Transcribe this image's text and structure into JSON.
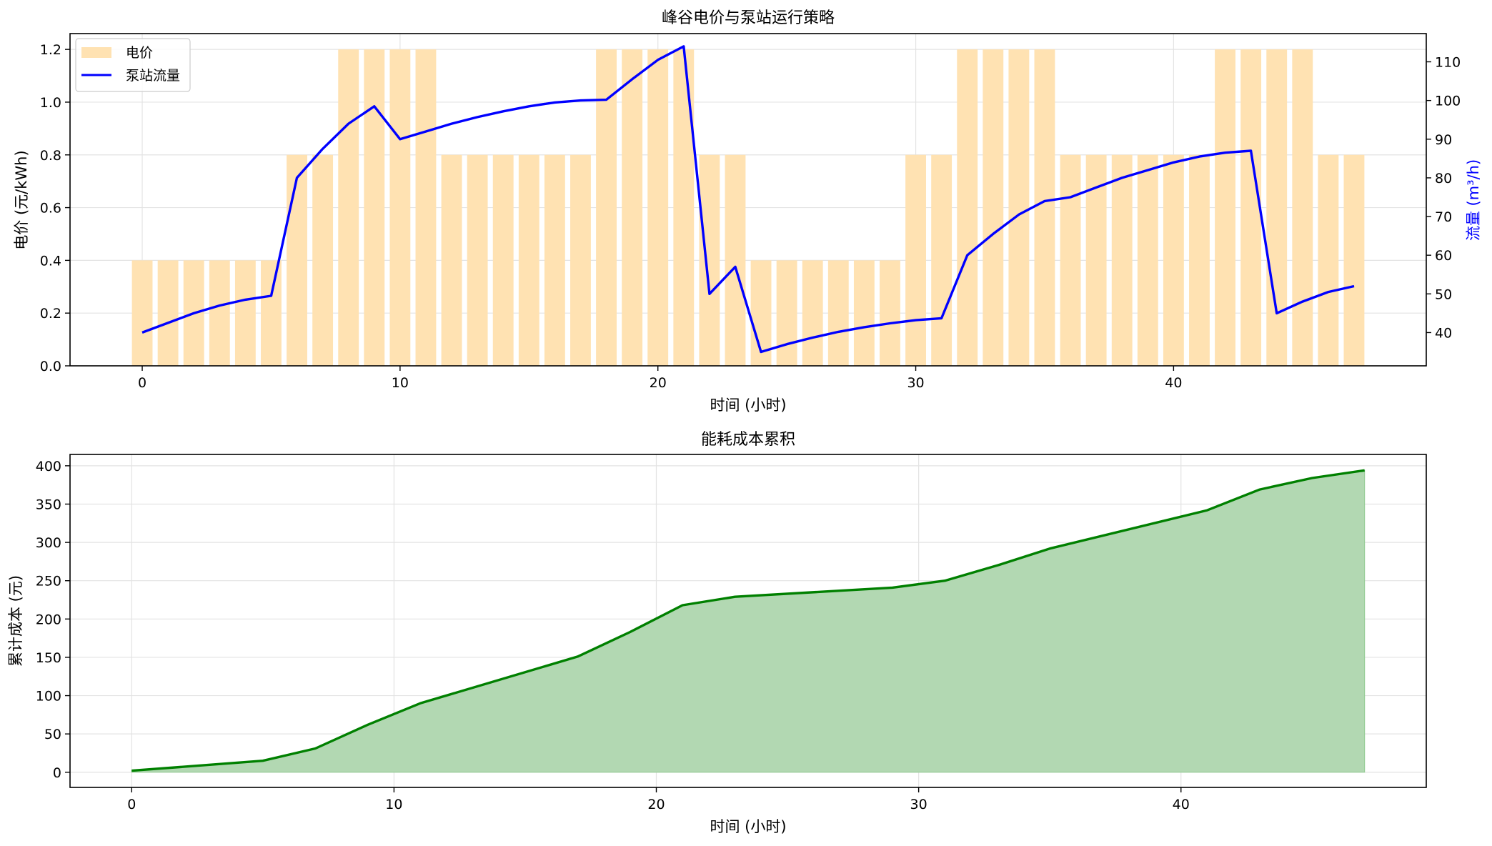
{
  "chart_data": [
    {
      "type": "bar+line",
      "title": "峰谷电价与泵站运行策略",
      "xlabel": "时间 (小时)",
      "ylabel": "电价 (元/kWh)",
      "ylabel_right": "流量 (m³/h)",
      "xlim": [
        -2.8,
        49.8
      ],
      "ylim": [
        0,
        1.26
      ],
      "ylim_right": [
        31.4,
        117.3
      ],
      "x_ticks": [
        0,
        10,
        20,
        30,
        40
      ],
      "y_ticks": [
        0.0,
        0.2,
        0.4,
        0.6,
        0.8,
        1.0,
        1.2
      ],
      "y_tick_labels": [
        "0.0",
        "0.2",
        "0.4",
        "0.6",
        "0.8",
        "1.0",
        "1.2"
      ],
      "y_right_ticks": [
        40,
        50,
        60,
        70,
        80,
        90,
        100,
        110
      ],
      "grid": true,
      "legend_position": "top-left",
      "series": [
        {
          "name": "电价",
          "kind": "bar",
          "color": "#FFE2B2",
          "x": [
            0,
            1,
            2,
            3,
            4,
            5,
            6,
            7,
            8,
            9,
            10,
            11,
            12,
            13,
            14,
            15,
            16,
            17,
            18,
            19,
            20,
            21,
            22,
            23,
            24,
            25,
            26,
            27,
            28,
            29,
            30,
            31,
            32,
            33,
            34,
            35,
            36,
            37,
            38,
            39,
            40,
            41,
            42,
            43,
            44,
            45,
            46,
            47
          ],
          "values": [
            0.4,
            0.4,
            0.4,
            0.4,
            0.4,
            0.4,
            0.8,
            0.8,
            1.2,
            1.2,
            1.2,
            1.2,
            0.8,
            0.8,
            0.8,
            0.8,
            0.8,
            0.8,
            1.2,
            1.2,
            1.2,
            1.2,
            0.8,
            0.8,
            0.4,
            0.4,
            0.4,
            0.4,
            0.4,
            0.4,
            0.8,
            0.8,
            1.2,
            1.2,
            1.2,
            1.2,
            0.8,
            0.8,
            0.8,
            0.8,
            0.8,
            0.8,
            1.2,
            1.2,
            1.2,
            1.2,
            0.8,
            0.8
          ]
        },
        {
          "name": "泵站流量",
          "kind": "line",
          "axis": "right",
          "color": "#0000FF",
          "x": [
            0,
            1,
            2,
            3,
            4,
            5,
            6,
            7,
            8,
            9,
            10,
            11,
            12,
            13,
            14,
            15,
            16,
            17,
            18,
            19,
            20,
            21,
            22,
            23,
            24,
            25,
            26,
            27,
            28,
            29,
            30,
            31,
            32,
            33,
            34,
            35,
            36,
            37,
            38,
            39,
            40,
            41,
            42,
            43,
            44,
            45,
            46,
            47
          ],
          "values": [
            40,
            42.5,
            45,
            47,
            48.5,
            49.5,
            80,
            87.5,
            94,
            98.5,
            90,
            92,
            94,
            95.7,
            97.2,
            98.5,
            99.5,
            100,
            100.2,
            105.5,
            110.5,
            114,
            50,
            57,
            35,
            37,
            38.7,
            40.2,
            41.4,
            42.4,
            43.2,
            43.7,
            60,
            65.5,
            70.5,
            74,
            75,
            77.5,
            80,
            82,
            84,
            85.5,
            86.5,
            87,
            45,
            48,
            50.5,
            52
          ]
        }
      ]
    },
    {
      "type": "area",
      "title": "能耗成本累积",
      "xlabel": "时间 (小时)",
      "ylabel": "累计成本 (元)",
      "xlim": [
        -2.35,
        49.35
      ],
      "ylim": [
        -19.8,
        414.8
      ],
      "x_ticks": [
        0,
        10,
        20,
        30,
        40
      ],
      "y_ticks": [
        0,
        50,
        100,
        150,
        200,
        250,
        300,
        350,
        400
      ],
      "grid": true,
      "series": [
        {
          "name": "累计成本",
          "color": "#008000",
          "fill": "#B2D8B2",
          "x": [
            0,
            5,
            7,
            9,
            11,
            17,
            19,
            21,
            23,
            29,
            31,
            33,
            35,
            41,
            43,
            45,
            47
          ],
          "values": [
            2,
            15,
            31,
            62,
            90,
            151,
            183,
            218,
            229,
            241,
            250,
            270,
            292,
            342,
            369,
            384,
            394
          ]
        }
      ]
    }
  ]
}
